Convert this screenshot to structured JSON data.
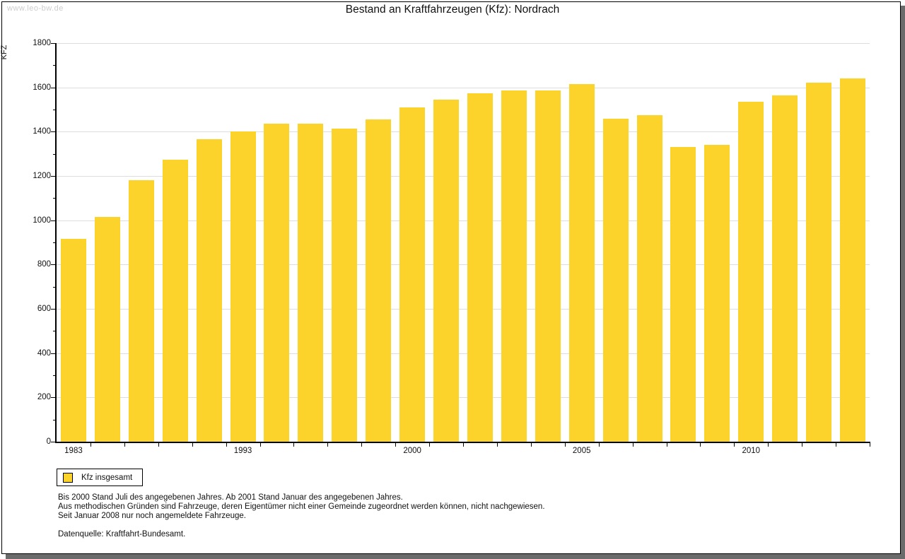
{
  "watermark": "www.leo-bw.de",
  "title": "Bestand an Kraftfahrzeugen (Kfz): Nordrach",
  "y_axis_title": "KFZ",
  "legend": {
    "label": "Kfz insgesamt"
  },
  "footnotes": [
    "Bis 2000 Stand Juli des angegebenen Jahres. Ab 2001 Stand Januar des angegebenen Jahres.",
    "Aus methodischen Gründen sind Fahrzeuge, deren Eigentümer nicht einer Gemeinde zugeordnet werden können, nicht nachgewiesen.",
    "Seit Januar 2008 nur noch angemeldete Fahrzeuge."
  ],
  "source": "Datenquelle: Kraftfahrt-Bundesamt.",
  "colors": {
    "bar": "#fcd32b",
    "grid": "#dddddd",
    "axis": "#000000",
    "watermark": "#cccccc",
    "frame_shadow": "#6b6b6b"
  },
  "chart_data": {
    "type": "bar",
    "title": "Bestand an Kraftfahrzeugen (Kfz): Nordrach",
    "ylabel": "KFZ",
    "xlabel": "",
    "ylim": [
      0,
      1800
    ],
    "y_major_step": 200,
    "y_minor_step": 100,
    "grid": "horizontal-major",
    "legend_position": "bottom-left",
    "y_tick_labels": [
      "0",
      "200",
      "400",
      "600",
      "800",
      "1000",
      "1200",
      "1400",
      "1600",
      "1800"
    ],
    "x_tick_labels": [
      {
        "index": 0,
        "label": "1983"
      },
      {
        "index": 5,
        "label": "1993"
      },
      {
        "index": 10,
        "label": "2000"
      },
      {
        "index": 15,
        "label": "2005"
      },
      {
        "index": 20,
        "label": "2010"
      }
    ],
    "series": [
      {
        "name": "Kfz insgesamt",
        "values": [
          915,
          1015,
          1180,
          1275,
          1365,
          1400,
          1435,
          1435,
          1415,
          1455,
          1510,
          1545,
          1575,
          1585,
          1585,
          1615,
          1460,
          1475,
          1330,
          1340,
          1535,
          1565,
          1620,
          1640
        ]
      }
    ]
  }
}
